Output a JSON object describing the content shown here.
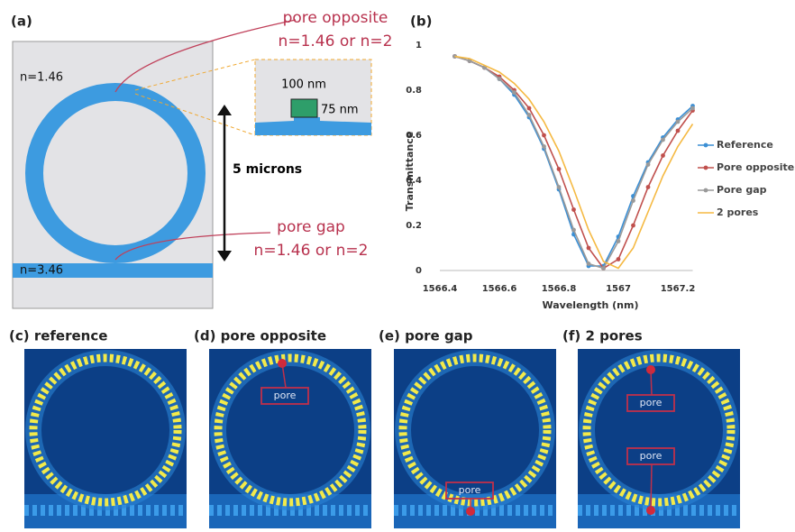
{
  "figure": {
    "panel_a": {
      "label": "(a)",
      "n_clad": "n=1.46",
      "n_wg": "n=3.46",
      "pore_opposite": "pore opposite",
      "pore_opposite_n": "n=1.46 or n=2",
      "pore_gap": "pore gap",
      "pore_gap_n": "n=1.46 or n=2",
      "width": "100 nm",
      "height": "75 nm",
      "diameter": "5 microns"
    },
    "panel_b_label": "(b)",
    "field_panels": [
      {
        "title": "(c) reference",
        "pores": []
      },
      {
        "title": "(d) pore opposite",
        "pores": [
          "pore"
        ]
      },
      {
        "title": "(e)  pore gap",
        "pores": [
          "pore"
        ]
      },
      {
        "title": "(f) 2 pores",
        "pores": [
          "pore",
          "pore"
        ]
      }
    ]
  },
  "chart_data": {
    "type": "line",
    "x_label": "Wavelength (nm)",
    "y_label": "Transmittance",
    "x": [
      1566.45,
      1566.5,
      1566.55,
      1566.6,
      1566.65,
      1566.7,
      1566.75,
      1566.8,
      1566.85,
      1566.9,
      1566.95,
      1567.0,
      1567.05,
      1567.1,
      1567.15,
      1567.2,
      1567.25
    ],
    "series": [
      {
        "name": "Reference",
        "color": "#3b8fd4",
        "marker": true,
        "values": [
          0.95,
          0.93,
          0.9,
          0.85,
          0.78,
          0.68,
          0.54,
          0.36,
          0.16,
          0.02,
          0.02,
          0.15,
          0.33,
          0.48,
          0.59,
          0.67,
          0.73
        ]
      },
      {
        "name": "Pore opposite",
        "color": "#c0504d",
        "marker": true,
        "values": [
          0.95,
          0.93,
          0.9,
          0.86,
          0.8,
          0.72,
          0.6,
          0.45,
          0.27,
          0.1,
          0.01,
          0.05,
          0.2,
          0.37,
          0.51,
          0.62,
          0.71
        ]
      },
      {
        "name": "Pore gap",
        "color": "#9a9a9a",
        "marker": true,
        "values": [
          0.95,
          0.93,
          0.9,
          0.85,
          0.79,
          0.69,
          0.55,
          0.37,
          0.18,
          0.03,
          0.01,
          0.13,
          0.31,
          0.47,
          0.58,
          0.66,
          0.72
        ]
      },
      {
        "name": "2 pores",
        "color": "#f5b942",
        "marker": false,
        "values": [
          0.95,
          0.94,
          0.91,
          0.88,
          0.83,
          0.76,
          0.66,
          0.53,
          0.36,
          0.18,
          0.04,
          0.01,
          0.1,
          0.26,
          0.42,
          0.55,
          0.65
        ]
      }
    ],
    "xlim": [
      1566.4,
      1567.25
    ],
    "xticks": [
      1566.4,
      1566.6,
      1566.8,
      1567,
      1567.2
    ],
    "ylim": [
      0,
      1
    ],
    "yticks": [
      0,
      0.2,
      0.4,
      0.6,
      0.8,
      1
    ],
    "legend": "right"
  }
}
